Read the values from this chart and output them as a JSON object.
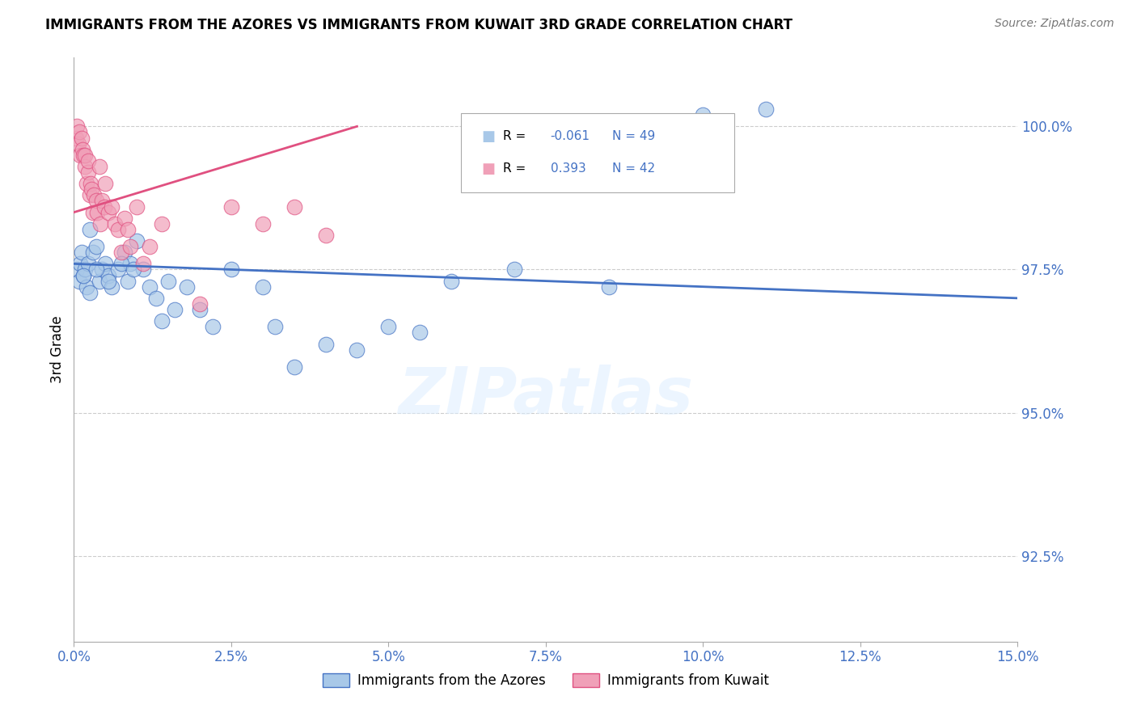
{
  "title": "IMMIGRANTS FROM THE AZORES VS IMMIGRANTS FROM KUWAIT 3RD GRADE CORRELATION CHART",
  "source": "Source: ZipAtlas.com",
  "ylabel": "3rd Grade",
  "legend_label_blue": "Immigrants from the Azores",
  "legend_label_pink": "Immigrants from Kuwait",
  "R_blue": -0.061,
  "N_blue": 49,
  "R_pink": 0.393,
  "N_pink": 42,
  "color_blue": "#a8c8e8",
  "color_pink": "#f0a0b8",
  "line_color_blue": "#4472c4",
  "line_color_pink": "#e05080",
  "x_min": 0.0,
  "x_max": 15.0,
  "y_min": 91.0,
  "y_max": 101.2,
  "yticks": [
    92.5,
    95.0,
    97.5,
    100.0
  ],
  "xticks": [
    0.0,
    2.5,
    5.0,
    7.5,
    10.0,
    12.5,
    15.0
  ],
  "blue_x": [
    0.05,
    0.08,
    0.1,
    0.12,
    0.15,
    0.18,
    0.2,
    0.22,
    0.25,
    0.3,
    0.35,
    0.4,
    0.45,
    0.5,
    0.55,
    0.6,
    0.7,
    0.8,
    0.85,
    0.9,
    1.0,
    1.1,
    1.2,
    1.3,
    1.5,
    1.6,
    1.8,
    2.0,
    2.2,
    2.5,
    3.0,
    3.2,
    3.5,
    4.0,
    4.5,
    5.0,
    5.5,
    6.0,
    7.0,
    8.5,
    10.0,
    11.0,
    0.15,
    0.25,
    0.35,
    0.55,
    0.75,
    0.95,
    1.4
  ],
  "blue_y": [
    97.5,
    97.3,
    97.6,
    97.8,
    97.4,
    97.5,
    97.2,
    97.6,
    98.2,
    97.8,
    97.9,
    97.3,
    97.5,
    97.6,
    97.4,
    97.2,
    97.5,
    97.8,
    97.3,
    97.6,
    98.0,
    97.5,
    97.2,
    97.0,
    97.3,
    96.8,
    97.2,
    96.8,
    96.5,
    97.5,
    97.2,
    96.5,
    95.8,
    96.2,
    96.1,
    96.5,
    96.4,
    97.3,
    97.5,
    97.2,
    100.2,
    100.3,
    97.4,
    97.1,
    97.5,
    97.3,
    97.6,
    97.5,
    96.6
  ],
  "pink_x": [
    0.03,
    0.05,
    0.07,
    0.08,
    0.1,
    0.12,
    0.13,
    0.15,
    0.17,
    0.18,
    0.2,
    0.22,
    0.23,
    0.25,
    0.27,
    0.28,
    0.3,
    0.32,
    0.35,
    0.37,
    0.4,
    0.42,
    0.45,
    0.48,
    0.5,
    0.55,
    0.6,
    0.65,
    0.7,
    0.75,
    0.8,
    0.85,
    0.9,
    1.0,
    1.1,
    1.2,
    1.4,
    2.0,
    2.5,
    3.0,
    3.5,
    4.0
  ],
  "pink_y": [
    99.8,
    100.0,
    99.7,
    99.9,
    99.5,
    99.8,
    99.6,
    99.5,
    99.3,
    99.5,
    99.0,
    99.2,
    99.4,
    98.8,
    99.0,
    98.9,
    98.5,
    98.8,
    98.7,
    98.5,
    99.3,
    98.3,
    98.7,
    98.6,
    99.0,
    98.5,
    98.6,
    98.3,
    98.2,
    97.8,
    98.4,
    98.2,
    97.9,
    98.6,
    97.6,
    97.9,
    98.3,
    96.9,
    98.6,
    98.3,
    98.6,
    98.1
  ],
  "blue_trend_x": [
    0.0,
    15.0
  ],
  "blue_trend_y": [
    97.6,
    97.0
  ],
  "pink_trend_x": [
    0.0,
    4.5
  ],
  "pink_trend_y": [
    98.5,
    100.0
  ]
}
